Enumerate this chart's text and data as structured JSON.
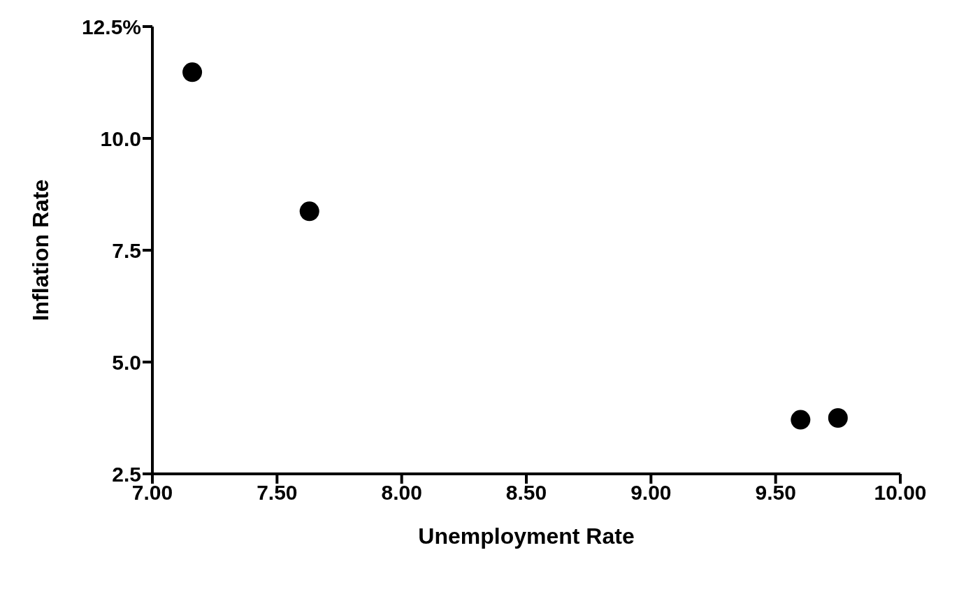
{
  "chart_data": {
    "type": "scatter",
    "xlabel": "Unemployment Rate",
    "ylabel": "Inflation Rate",
    "x": [
      7.16,
      7.63,
      9.6,
      9.75
    ],
    "series": [
      {
        "color": "#000000",
        "values": [
          11.48,
          8.37,
          3.71,
          3.75
        ]
      }
    ],
    "xlim": [
      7,
      10
    ],
    "xticks": [
      {
        "value": 7,
        "label": "7.00"
      },
      {
        "value": 7.5,
        "label": "7.50"
      },
      {
        "value": 8,
        "label": "8.00"
      },
      {
        "value": 8.5,
        "label": "8.50"
      },
      {
        "value": 9,
        "label": "9.00"
      },
      {
        "value": 9.5,
        "label": "9.50"
      },
      {
        "value": 10,
        "label": "10.00"
      }
    ],
    "ylim": [
      2.5,
      12.5
    ],
    "yticks": [
      {
        "value": 2.5,
        "label": "2.5"
      },
      {
        "value": 5,
        "label": "5.0"
      },
      {
        "value": 7.5,
        "label": "7.5"
      },
      {
        "value": 10,
        "label": "10.0"
      },
      {
        "value": 12.5,
        "label": "12.5%"
      }
    ],
    "marker": "circle"
  }
}
